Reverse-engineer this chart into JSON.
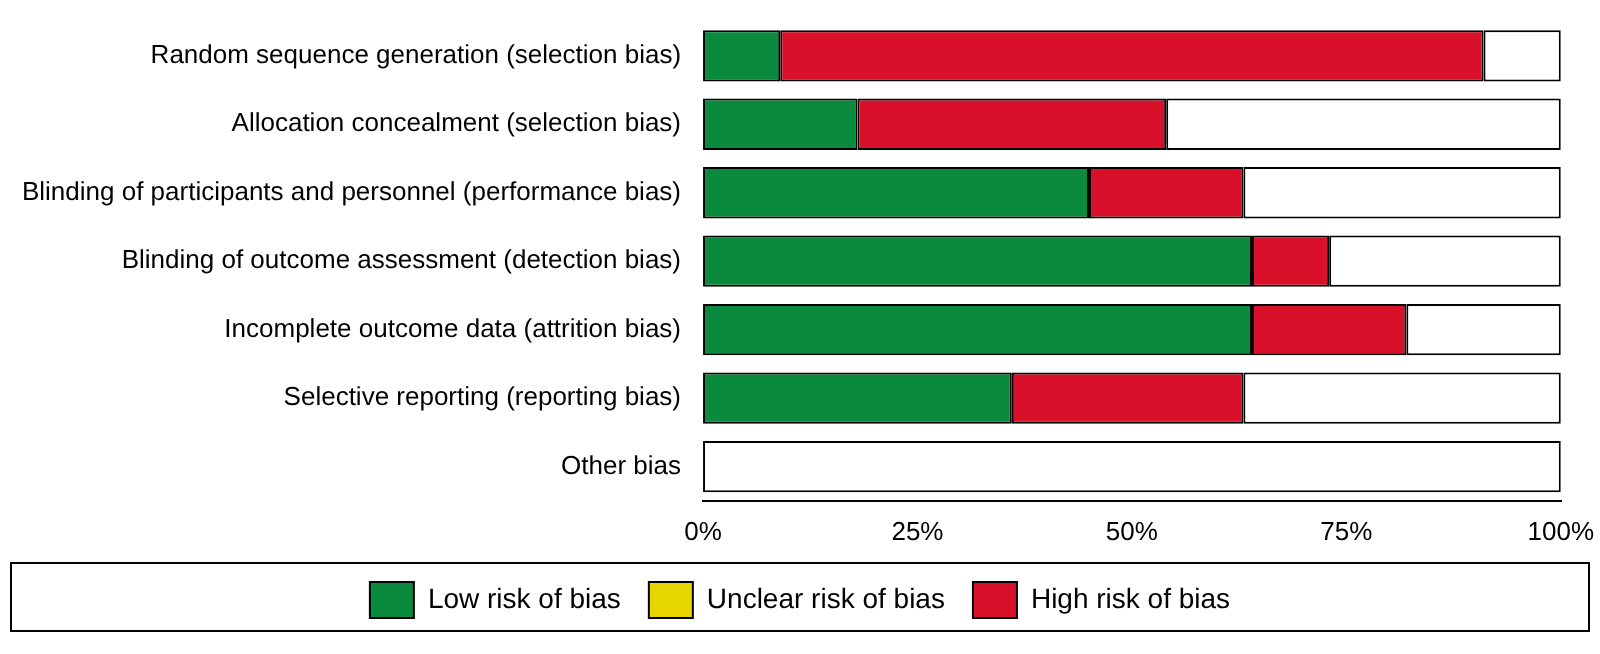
{
  "chart_data": {
    "type": "bar",
    "orientation": "horizontal",
    "stacked": true,
    "categories": [
      "Random sequence generation (selection bias)",
      "Allocation concealment (selection bias)",
      "Blinding of participants and personnel (performance bias)",
      "Blinding of outcome assessment (detection bias)",
      "Incomplete outcome data (attrition bias)",
      "Selective reporting (reporting bias)",
      "Other bias"
    ],
    "series": [
      {
        "name": "Low risk of bias",
        "color": "#0a8a3c",
        "values": [
          9,
          18,
          45,
          64,
          64,
          36,
          null
        ]
      },
      {
        "name": "Unclear risk of bias",
        "color": "#e6d500",
        "values": [
          null,
          null,
          null,
          null,
          null,
          null,
          null
        ]
      },
      {
        "name": "High risk of bias",
        "color": "#d8102a",
        "values": [
          82,
          36,
          18,
          9,
          18,
          27,
          null
        ]
      },
      {
        "color": "#ffffff",
        "values": [
          9,
          46,
          37,
          27,
          18,
          37,
          100
        ]
      }
    ],
    "xlim": [
      0,
      100
    ],
    "xticks": [
      {
        "value": 0,
        "label": "0%"
      },
      {
        "value": 25,
        "label": "25%"
      },
      {
        "value": 50,
        "label": "50%"
      },
      {
        "value": 75,
        "label": "75%"
      },
      {
        "value": 100,
        "label": "100%"
      }
    ],
    "grid": false,
    "legend": "bottom"
  }
}
